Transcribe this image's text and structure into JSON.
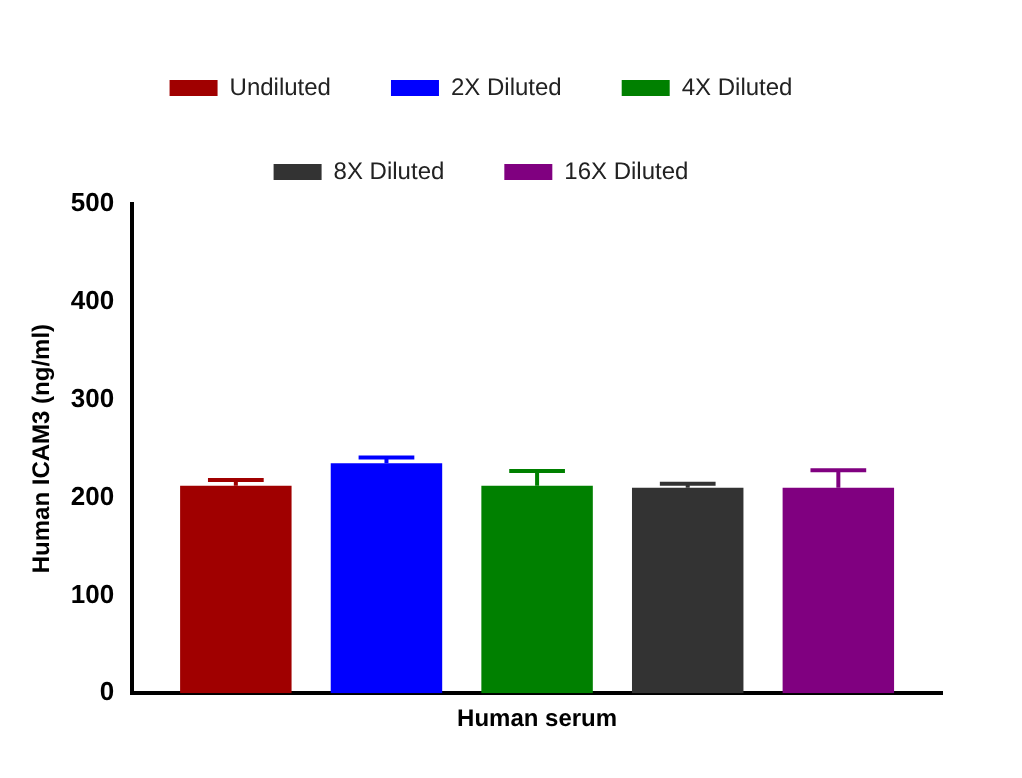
{
  "chart_data": {
    "type": "bar",
    "ylabel": "Human ICAM3 (ng/ml)",
    "categories": [
      "Human serum"
    ],
    "series": [
      {
        "name": "Undiluted",
        "color": "#a00000",
        "values": [
          212
        ],
        "errors": [
          [
            212,
            218
          ]
        ]
      },
      {
        "name": "2X Diluted",
        "color": "#0000ff",
        "values": [
          235
        ],
        "errors": [
          [
            235,
            241
          ]
        ]
      },
      {
        "name": "4X Diluted",
        "color": "#008000",
        "values": [
          212
        ],
        "errors": [
          [
            212,
            227
          ]
        ]
      },
      {
        "name": "8X Diluted",
        "color": "#333333",
        "values": [
          210
        ],
        "errors": [
          [
            210,
            214
          ]
        ]
      },
      {
        "name": "16X Diluted",
        "color": "#800080",
        "values": [
          210
        ],
        "errors": [
          [
            210,
            228
          ]
        ]
      }
    ],
    "ylim": [
      0,
      500
    ],
    "yticks": [
      0,
      100,
      200,
      300,
      400,
      500
    ],
    "grid": false,
    "legend": "top"
  }
}
